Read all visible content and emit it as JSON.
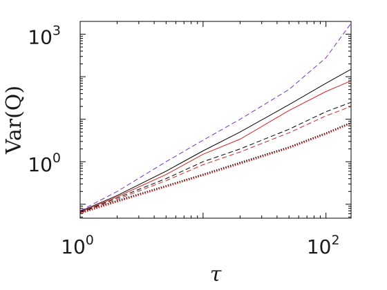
{
  "chart_data": {
    "type": "line",
    "title": "",
    "xlabel": "τ",
    "ylabel": "Var(Q)",
    "xscale": "log",
    "yscale": "log",
    "xlim": [
      1,
      160
    ],
    "ylim": [
      0.047,
      2000
    ],
    "x_ticks": [
      {
        "value": 1,
        "base": "10",
        "exp": "0"
      },
      {
        "value": 100,
        "base": "10",
        "exp": "2"
      }
    ],
    "y_ticks": [
      {
        "value": 1,
        "base": "10",
        "exp": "0"
      },
      {
        "value": 1000,
        "base": "10",
        "exp": "3"
      }
    ],
    "grid": false,
    "legend": "none",
    "series": [
      {
        "style": "dashed",
        "color": "#7b2fbe",
        "x": [
          1,
          2,
          5,
          10,
          20,
          50,
          100,
          160
        ],
        "y": [
          0.07,
          0.2,
          1.0,
          3.2,
          10,
          50,
          280,
          1800
        ]
      },
      {
        "style": "solid",
        "color": "#000000",
        "x": [
          1,
          2,
          5,
          10,
          20,
          50,
          100,
          160
        ],
        "y": [
          0.068,
          0.16,
          0.6,
          1.8,
          5.0,
          22,
          70,
          150
        ]
      },
      {
        "style": "solid",
        "color": "#d62020",
        "x": [
          1,
          2,
          5,
          10,
          20,
          50,
          100,
          160
        ],
        "y": [
          0.065,
          0.15,
          0.5,
          1.5,
          3.4,
          16,
          45,
          80
        ]
      },
      {
        "style": "dashed",
        "color": "#000000",
        "x": [
          1,
          2,
          5,
          10,
          20,
          50,
          100,
          160
        ],
        "y": [
          0.064,
          0.14,
          0.4,
          1.0,
          2.0,
          5.8,
          15,
          25
        ]
      },
      {
        "style": "dashed",
        "color": "#d62020",
        "x": [
          1,
          2,
          5,
          10,
          20,
          50,
          100,
          160
        ],
        "y": [
          0.063,
          0.13,
          0.36,
          0.85,
          1.7,
          4.8,
          12,
          20
        ]
      },
      {
        "style": "dotted",
        "color": "#000000",
        "x": [
          1,
          2,
          5,
          10,
          20,
          50,
          100,
          160
        ],
        "y": [
          0.062,
          0.12,
          0.27,
          0.5,
          0.95,
          2.2,
          4.7,
          8.3
        ]
      },
      {
        "style": "dotted",
        "color": "#d62020",
        "x": [
          1,
          2,
          5,
          10,
          20,
          50,
          100,
          160
        ],
        "y": [
          0.061,
          0.115,
          0.26,
          0.48,
          0.9,
          2.1,
          4.5,
          8.0
        ]
      }
    ]
  }
}
